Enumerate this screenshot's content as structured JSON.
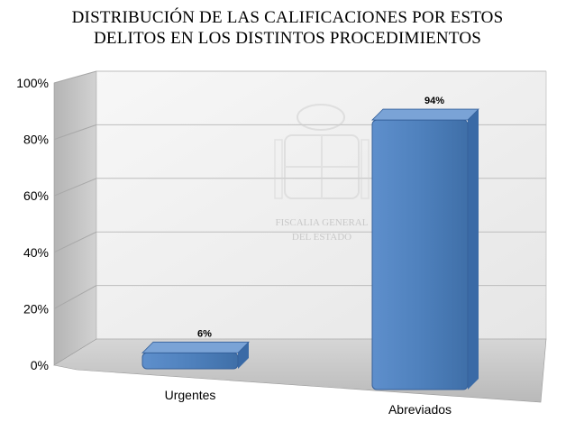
{
  "title_lines": [
    "DISTRIBUCIÓN DE LAS CALIFICACIONES POR ESTOS",
    "DELITOS EN LOS DISTINTOS PROCEDIMIENTOS"
  ],
  "watermark": [
    "FISCALIA GENERAL",
    "DEL ESTADO"
  ],
  "colors": {
    "bar": "#4f81bd",
    "bar_top": "#7aa3d6",
    "bar_side": "#3a6aa6",
    "wall": "#f0f0f0",
    "floor": "#c0c0c0"
  },
  "chart_data": {
    "type": "bar",
    "categories": [
      "Urgentes",
      "Abreviados"
    ],
    "values": [
      6,
      94
    ],
    "data_labels": [
      "6%",
      "94%"
    ],
    "ylim": [
      0,
      100
    ],
    "yticks": [
      "0%",
      "20%",
      "40%",
      "60%",
      "80%",
      "100%"
    ],
    "grid": true,
    "style": "3d"
  }
}
